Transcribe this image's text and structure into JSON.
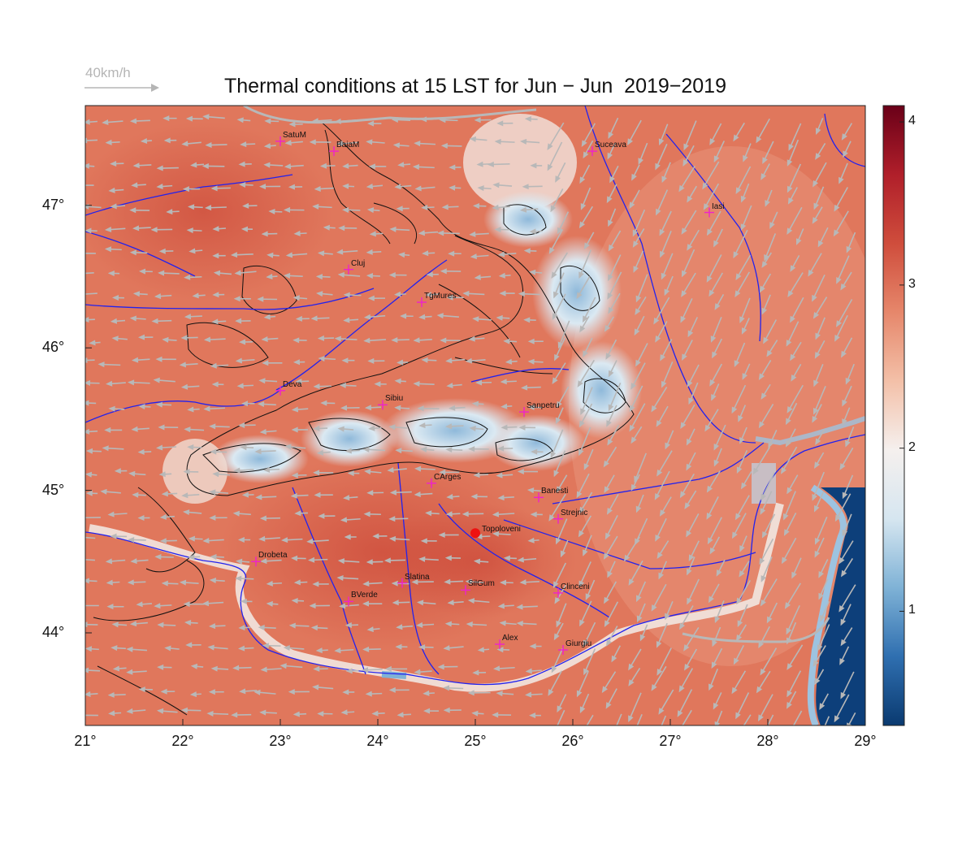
{
  "title": "Thermal conditions at 15 LST for Jun − Jun  2019−2019",
  "wind_legend": {
    "label": "40km/h",
    "color": "#b5b5b5"
  },
  "map": {
    "lon_range": [
      21,
      29
    ],
    "lat_range": [
      43.35,
      47.7
    ],
    "x_ticks": [
      "21°",
      "22°",
      "23°",
      "24°",
      "25°",
      "26°",
      "27°",
      "28°",
      "29°"
    ],
    "y_ticks": [
      {
        "lat": 47,
        "label": "47°"
      },
      {
        "lat": 46,
        "label": "46°"
      },
      {
        "lat": 45,
        "label": "45°"
      },
      {
        "lat": 44,
        "label": "44°"
      }
    ],
    "colors": {
      "field_hot": "#d9654d",
      "field_warm": "#e68a6e",
      "field_cool": "#f2f2f2",
      "field_cold": "#9dc3e0",
      "sea": "#0d3f7a",
      "rivers": "#2222ee",
      "contours": "#111111",
      "wind": "#b8b8b8",
      "city_marker": "#ee22cc",
      "highlight": "#ee1111"
    }
  },
  "colorbar": {
    "min": 0.3,
    "max": 4.1,
    "ticks": [
      {
        "value": 1,
        "label": "1"
      },
      {
        "value": 2,
        "label": "2"
      },
      {
        "value": 3,
        "label": "3"
      },
      {
        "value": 4,
        "label": "4"
      }
    ],
    "stops": [
      "#0a3a70",
      "#2f6fb0",
      "#7fb2d6",
      "#d6e6f0",
      "#f5f0ee",
      "#f3c0a8",
      "#e6876b",
      "#cf4d3c",
      "#b01f2a",
      "#6a0018"
    ]
  },
  "cities": [
    {
      "name": "SatuM",
      "lon": 23.0,
      "lat": 47.45
    },
    {
      "name": "BaiaM",
      "lon": 23.55,
      "lat": 47.38
    },
    {
      "name": "Suceava",
      "lon": 26.2,
      "lat": 47.38
    },
    {
      "name": "Iasi",
      "lon": 27.4,
      "lat": 46.95
    },
    {
      "name": "Cluj",
      "lon": 23.7,
      "lat": 46.55
    },
    {
      "name": "TgMures",
      "lon": 24.45,
      "lat": 46.32
    },
    {
      "name": "Deva",
      "lon": 23.0,
      "lat": 45.7
    },
    {
      "name": "Sibiu",
      "lon": 24.05,
      "lat": 45.6
    },
    {
      "name": "Sanpetru",
      "lon": 25.5,
      "lat": 45.55
    },
    {
      "name": "CArges",
      "lon": 24.55,
      "lat": 45.05
    },
    {
      "name": "Banesti",
      "lon": 25.65,
      "lat": 44.95
    },
    {
      "name": "Strejnic",
      "lon": 25.85,
      "lat": 44.8
    },
    {
      "name": "Drobeta",
      "lon": 22.75,
      "lat": 44.5
    },
    {
      "name": "Slatina",
      "lon": 24.25,
      "lat": 44.35
    },
    {
      "name": "SilGum",
      "lon": 24.9,
      "lat": 44.3
    },
    {
      "name": "Clinceni",
      "lon": 25.85,
      "lat": 44.28
    },
    {
      "name": "BVerde",
      "lon": 23.7,
      "lat": 44.22
    },
    {
      "name": "Alex",
      "lon": 25.25,
      "lat": 43.92
    },
    {
      "name": "Giurgiu",
      "lon": 25.9,
      "lat": 43.88
    }
  ],
  "highlight_site": {
    "name": "Topoloveni",
    "lon": 25.0,
    "lat": 44.7
  }
}
